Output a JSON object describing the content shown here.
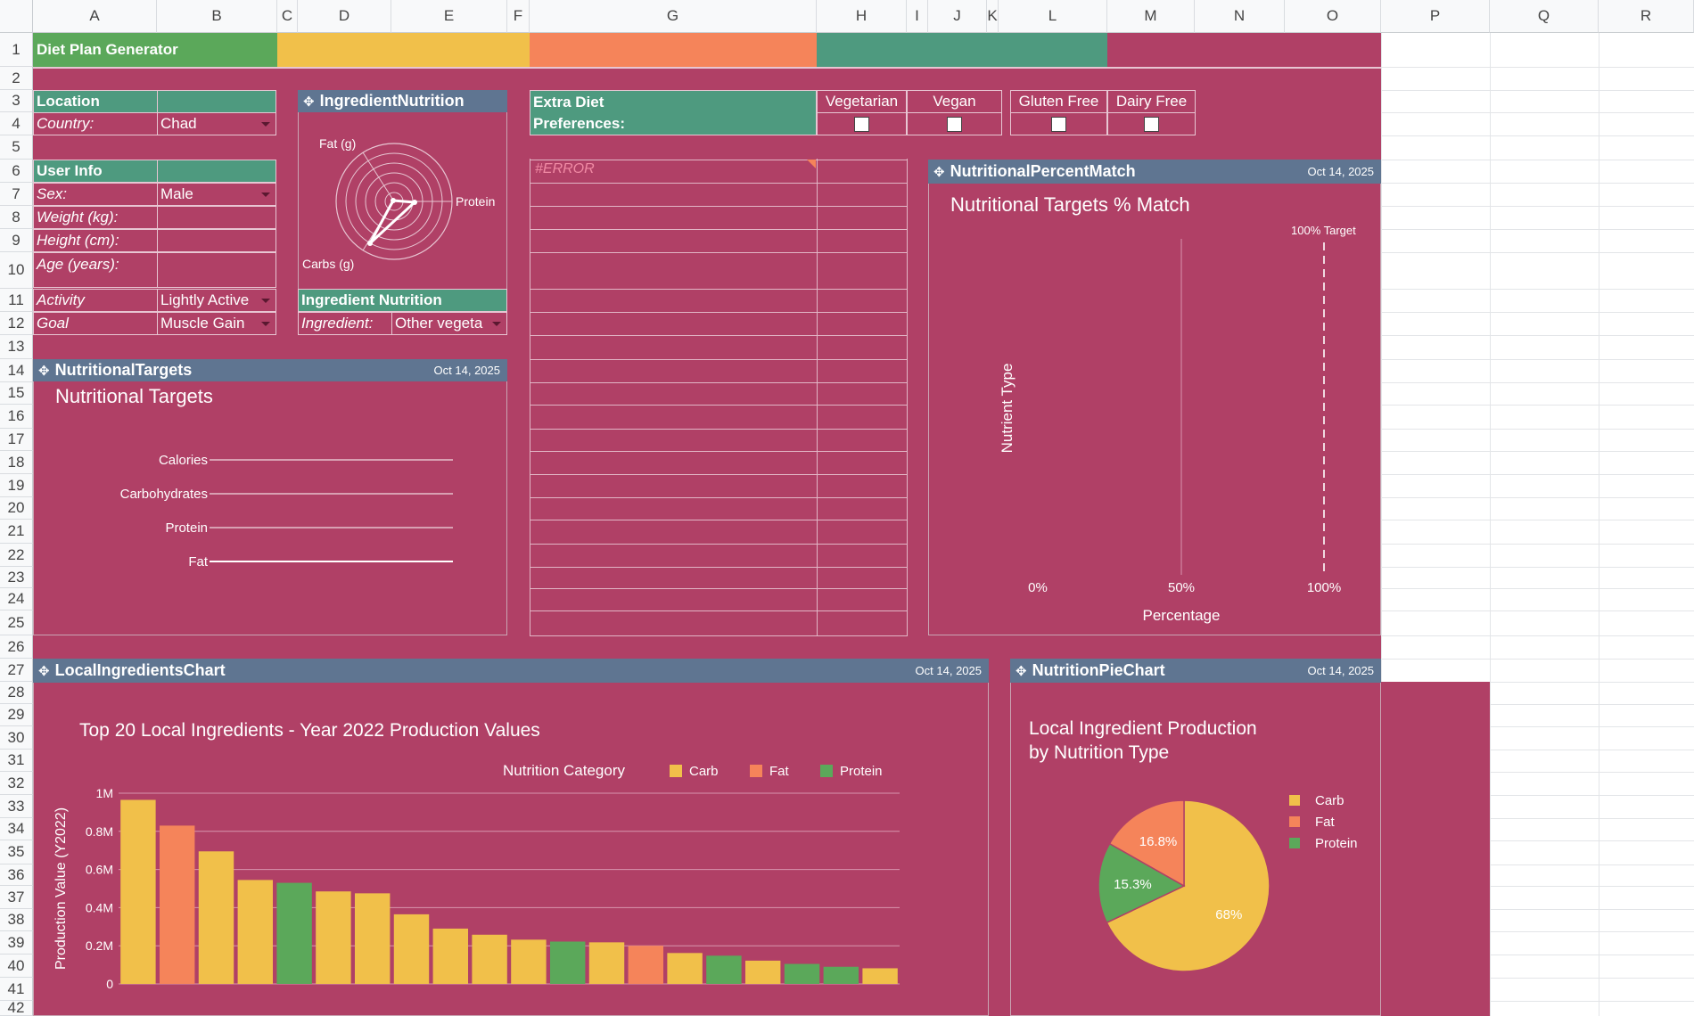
{
  "columns": [
    "A",
    "B",
    "C",
    "D",
    "E",
    "F",
    "G",
    "H",
    "I",
    "J",
    "K",
    "L",
    "M",
    "N",
    "O",
    "P",
    "Q",
    "R"
  ],
  "rows": [
    "1",
    "2",
    "3",
    "4",
    "5",
    "6",
    "7",
    "8",
    "9",
    "10",
    "11",
    "12",
    "13",
    "14",
    "15",
    "16",
    "17",
    "18",
    "19",
    "20",
    "21",
    "22",
    "23",
    "24",
    "25",
    "26",
    "27",
    "28",
    "29",
    "30",
    "31",
    "32",
    "33",
    "34",
    "35",
    "36",
    "37",
    "38",
    "39",
    "40",
    "41",
    "42"
  ],
  "colors": {
    "sheet": "#b04066",
    "green": "#5ba85a",
    "yellow": "#f1c04a",
    "orange": "#f5845a",
    "teal": "#4e9a7f",
    "slate": "#5f7591",
    "carb": "#f1c04a",
    "fat": "#f5845a",
    "protein": "#5ba85a"
  },
  "banner": {
    "title": "Diet Plan Generator"
  },
  "location": {
    "header": "Location",
    "country_label": "Country:",
    "country_value": "Chad"
  },
  "user_info": {
    "header": "User Info",
    "sex_label": "Sex:",
    "sex_value": "Male",
    "weight_label": "Weight (kg):",
    "weight_value": "",
    "height_label": "Height (cm):",
    "height_value": "",
    "age_label": "Age (years):",
    "age_value": "",
    "activity_label": "Activity",
    "activity_value": "Lightly Active",
    "goal_label": "Goal",
    "goal_value": "Muscle Gain"
  },
  "ingredient_nutrition_chart": {
    "title": "IngredientNutrition",
    "axes": [
      "Fat (g)",
      "Protein",
      "Carbs (g)"
    ]
  },
  "ingredient_nutrition": {
    "header": "Ingredient Nutrition",
    "ingredient_label": "Ingredient:",
    "ingredient_value": "Other vegeta"
  },
  "extra_diet": {
    "header_line1": "Extra Diet",
    "header_line2": "Preferences:",
    "options": [
      "Vegetarian",
      "Vegan",
      "Gluten Free",
      "Dairy Free"
    ]
  },
  "error_text": "#ERROR",
  "nutritional_targets": {
    "title_bar": "NutritionalTargets",
    "date": "Oct 14, 2025",
    "chart_title": "Nutritional Targets",
    "categories": [
      "Calories",
      "Carbohydrates",
      "Protein",
      "Fat"
    ]
  },
  "percent_match": {
    "title_bar": "NutritionalPercentMatch",
    "date": "Oct 14, 2025",
    "chart_title": "Nutritional Targets % Match",
    "target_label": "100% Target",
    "ylabel": "Nutrient Type",
    "xlabel": "Percentage",
    "ticks": [
      "0%",
      "50%",
      "100%"
    ]
  },
  "local_ingredients": {
    "title_bar": "LocalIngredientsChart",
    "date": "Oct 14, 2025"
  },
  "pie_panel": {
    "title_bar": "NutritionPieChart",
    "date": "Oct 14, 2025"
  },
  "chart_data": [
    {
      "type": "bar",
      "title": "Top 20 Local Ingredients - Year 2022 Production Values",
      "ylabel": "Production Value (Y2022)",
      "legend_title": "Nutrition Category",
      "legend_placement": "top-right",
      "ylim": [
        0,
        1000000
      ],
      "y_ticks": [
        "0",
        "0.2M",
        "0.4M",
        "0.6M",
        "0.8M",
        "1M"
      ],
      "y_tick_values": [
        0,
        200000,
        400000,
        600000,
        800000,
        1000000
      ],
      "series_names": [
        "Carb",
        "Fat",
        "Protein"
      ],
      "values": [
        965000,
        830000,
        695000,
        545000,
        530000,
        485000,
        475000,
        365000,
        290000,
        258000,
        232000,
        222000,
        218000,
        200000,
        162000,
        148000,
        122000,
        105000,
        90000,
        82000
      ],
      "categories_nutrition": [
        "Carb",
        "Fat",
        "Carb",
        "Carb",
        "Protein",
        "Carb",
        "Carb",
        "Carb",
        "Carb",
        "Carb",
        "Carb",
        "Protein",
        "Carb",
        "Fat",
        "Carb",
        "Protein",
        "Carb",
        "Protein",
        "Protein",
        "Carb"
      ]
    },
    {
      "type": "pie",
      "title_line1": "Local Ingredient Production",
      "title_line2": "by Nutrition Type",
      "legend_placement": "right",
      "labels": [
        "Carb",
        "Fat",
        "Protein"
      ],
      "values": [
        68,
        16.8,
        15.3
      ],
      "value_labels": [
        "68%",
        "16.8%",
        "15.3%"
      ]
    }
  ]
}
